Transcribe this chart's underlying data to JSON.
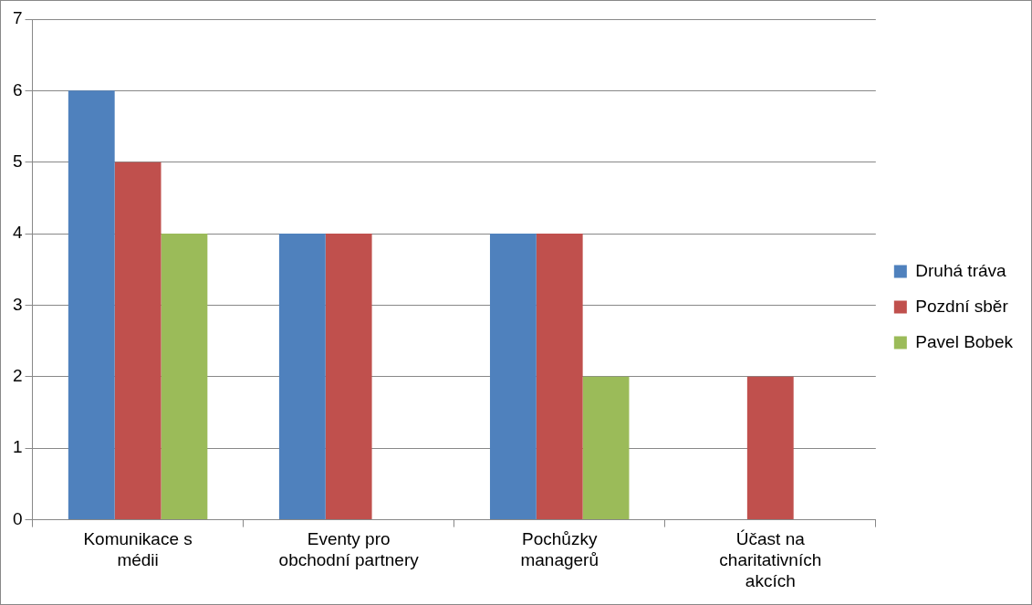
{
  "chart_data": {
    "type": "bar",
    "categories": [
      "Komunikace s médii",
      "Eventy pro obchodní partnery",
      "Pochůzky managerů",
      "Účast na charitativních akcích"
    ],
    "series": [
      {
        "name": "Druhá tráva",
        "color": "#4f81bd",
        "values": [
          6,
          4,
          4,
          0
        ]
      },
      {
        "name": "Pozdní sběr",
        "color": "#c0504d",
        "values": [
          5,
          4,
          4,
          2
        ]
      },
      {
        "name": "Pavel Bobek",
        "color": "#9bbb59",
        "values": [
          4,
          0,
          2,
          0
        ]
      }
    ],
    "ylim": [
      0,
      7
    ],
    "yticks": [
      0,
      1,
      2,
      3,
      4,
      5,
      6,
      7
    ],
    "grid": "y",
    "legend": "right"
  }
}
